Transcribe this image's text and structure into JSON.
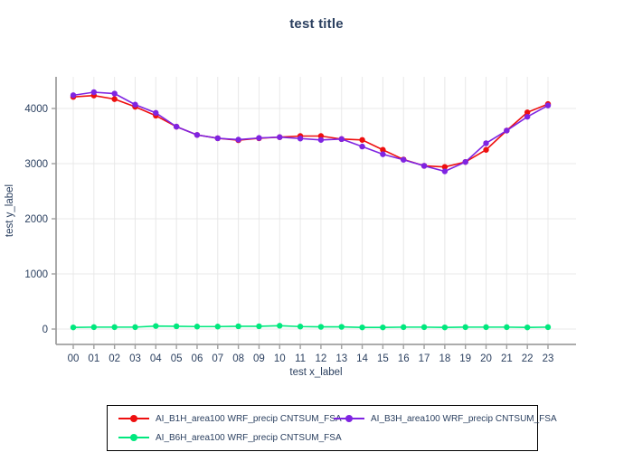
{
  "chart_data": {
    "type": "line",
    "title": "test title",
    "xlabel": "test x_label",
    "ylabel": "test y_label",
    "categories": [
      "00",
      "01",
      "02",
      "03",
      "04",
      "05",
      "06",
      "07",
      "08",
      "09",
      "10",
      "11",
      "12",
      "13",
      "14",
      "15",
      "16",
      "17",
      "18",
      "19",
      "20",
      "21",
      "22",
      "23"
    ],
    "yticks": [
      0,
      1000,
      2000,
      3000,
      4000
    ],
    "ylim": [
      -260,
      4560
    ],
    "grid": true,
    "legend_position": "bottom",
    "series": [
      {
        "name": "AI_B1H_area100 WRF_precip CNTSUM_FSA",
        "color": "#ee0f0f",
        "values": [
          4210,
          4235,
          4170,
          4030,
          3870,
          3670,
          3520,
          3460,
          3425,
          3460,
          3480,
          3500,
          3500,
          3445,
          3430,
          3250,
          3075,
          2960,
          2940,
          3030,
          3250,
          3600,
          3930,
          4080
        ]
      },
      {
        "name": "AI_B3H_area100 WRF_precip CNTSUM_FSA",
        "color": "#7f24e2",
        "values": [
          4240,
          4295,
          4270,
          4070,
          3920,
          3670,
          3520,
          3460,
          3435,
          3465,
          3480,
          3455,
          3430,
          3445,
          3310,
          3170,
          3070,
          2960,
          2860,
          3030,
          3370,
          3600,
          3850,
          4055
        ]
      },
      {
        "name": "AI_B6H_area100 WRF_precip CNTSUM_FSA",
        "color": "#00e87e",
        "values": [
          30,
          35,
          35,
          35,
          55,
          50,
          45,
          45,
          50,
          50,
          60,
          45,
          40,
          40,
          30,
          30,
          35,
          35,
          30,
          35,
          35,
          35,
          30,
          35
        ]
      }
    ]
  },
  "colors": {
    "text": "#2a3f5f",
    "grid": "#e8e8e8",
    "axis": "#a0a0a0",
    "legend_border": "#000000",
    "background": "#ffffff"
  }
}
